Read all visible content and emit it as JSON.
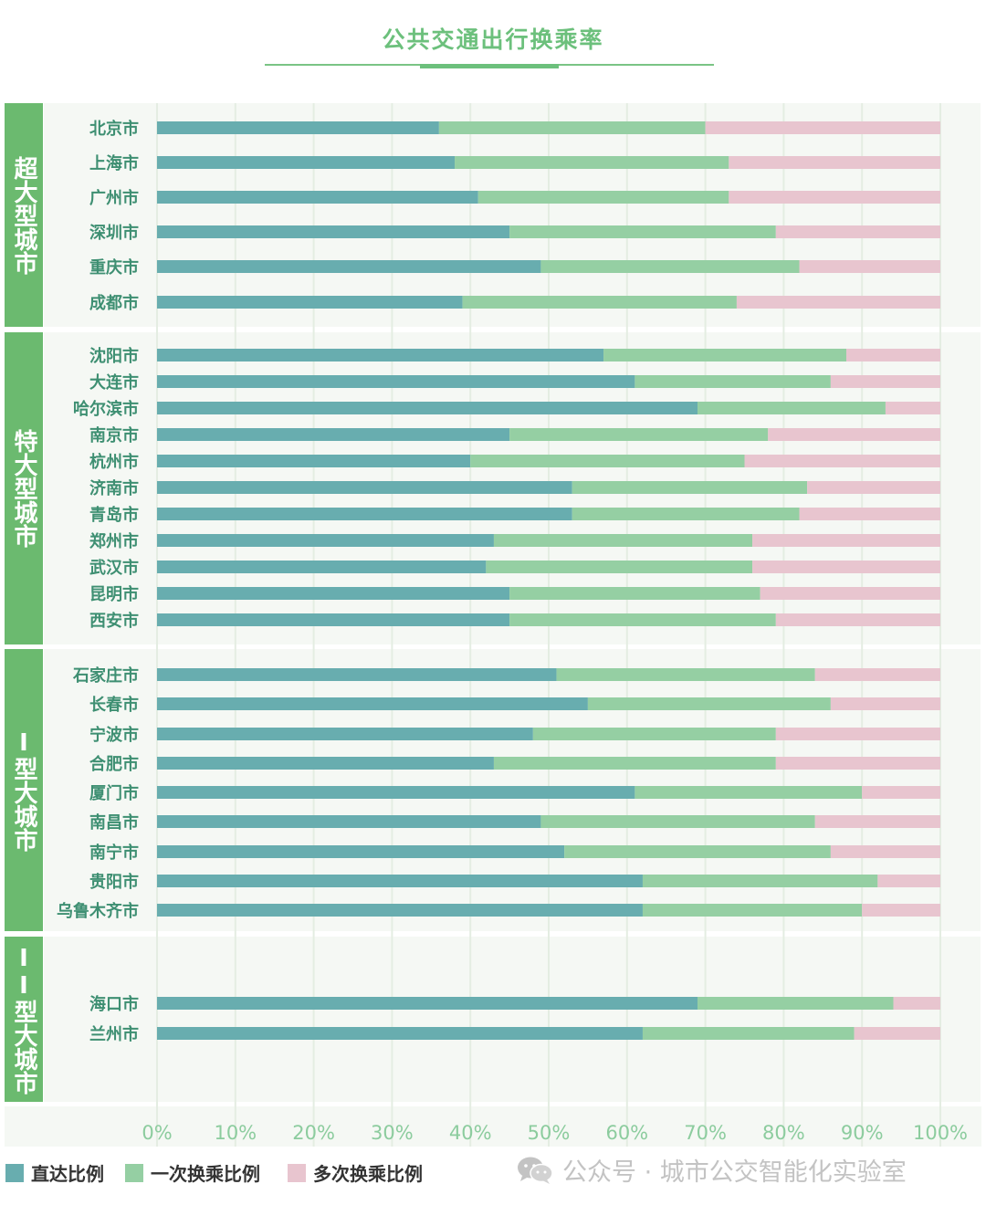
{
  "chart_data": {
    "type": "bar",
    "orientation": "horizontal",
    "stacked": true,
    "title": "公共交通出行换乘率",
    "x_ticks": [
      "0%",
      "10%",
      "20%",
      "30%",
      "40%",
      "50%",
      "60%",
      "70%",
      "80%",
      "90%",
      "100%"
    ],
    "xlim": [
      0,
      100
    ],
    "grid": true,
    "legend_position": "bottom-left",
    "colors": {
      "direct": "#68adaf",
      "one_transfer": "#95cfa3",
      "multi_transfer": "#e8c5cf",
      "group_label_bg": "#6bba6f",
      "city_label": "#3e8f72",
      "axis_tick": "#8ccc9e",
      "title": "#6cc07c"
    },
    "series": [
      {
        "name": "直达比例",
        "key": "direct"
      },
      {
        "name": "一次换乘比例",
        "key": "one_transfer"
      },
      {
        "name": "多次换乘比例",
        "key": "multi_transfer"
      }
    ],
    "groups": [
      {
        "label": "超大型城市",
        "cities": [
          {
            "name": "北京市",
            "direct": 36,
            "one_transfer": 34,
            "multi_transfer": 30
          },
          {
            "name": "上海市",
            "direct": 38,
            "one_transfer": 35,
            "multi_transfer": 27
          },
          {
            "name": "广州市",
            "direct": 41,
            "one_transfer": 32,
            "multi_transfer": 27
          },
          {
            "name": "深圳市",
            "direct": 45,
            "one_transfer": 34,
            "multi_transfer": 21
          },
          {
            "name": "重庆市",
            "direct": 49,
            "one_transfer": 33,
            "multi_transfer": 18
          },
          {
            "name": "成都市",
            "direct": 39,
            "one_transfer": 35,
            "multi_transfer": 26
          }
        ]
      },
      {
        "label": "特大型城市",
        "cities": [
          {
            "name": "沈阳市",
            "direct": 57,
            "one_transfer": 31,
            "multi_transfer": 12
          },
          {
            "name": "大连市",
            "direct": 61,
            "one_transfer": 25,
            "multi_transfer": 14
          },
          {
            "name": "哈尔滨市",
            "direct": 69,
            "one_transfer": 24,
            "multi_transfer": 7
          },
          {
            "name": "南京市",
            "direct": 45,
            "one_transfer": 33,
            "multi_transfer": 22
          },
          {
            "name": "杭州市",
            "direct": 40,
            "one_transfer": 35,
            "multi_transfer": 25
          },
          {
            "name": "济南市",
            "direct": 53,
            "one_transfer": 30,
            "multi_transfer": 17
          },
          {
            "name": "青岛市",
            "direct": 53,
            "one_transfer": 29,
            "multi_transfer": 18
          },
          {
            "name": "郑州市",
            "direct": 43,
            "one_transfer": 33,
            "multi_transfer": 24
          },
          {
            "name": "武汉市",
            "direct": 42,
            "one_transfer": 34,
            "multi_transfer": 24
          },
          {
            "name": "昆明市",
            "direct": 45,
            "one_transfer": 32,
            "multi_transfer": 23
          },
          {
            "name": "西安市",
            "direct": 45,
            "one_transfer": 34,
            "multi_transfer": 21
          }
        ]
      },
      {
        "label": "I型大城市",
        "cities": [
          {
            "name": "石家庄市",
            "direct": 51,
            "one_transfer": 33,
            "multi_transfer": 16
          },
          {
            "name": "长春市",
            "direct": 55,
            "one_transfer": 31,
            "multi_transfer": 14
          },
          {
            "name": "宁波市",
            "direct": 48,
            "one_transfer": 31,
            "multi_transfer": 21
          },
          {
            "name": "合肥市",
            "direct": 43,
            "one_transfer": 36,
            "multi_transfer": 21
          },
          {
            "name": "厦门市",
            "direct": 61,
            "one_transfer": 29,
            "multi_transfer": 10
          },
          {
            "name": "南昌市",
            "direct": 49,
            "one_transfer": 35,
            "multi_transfer": 16
          },
          {
            "name": "南宁市",
            "direct": 52,
            "one_transfer": 34,
            "multi_transfer": 14
          },
          {
            "name": "贵阳市",
            "direct": 62,
            "one_transfer": 30,
            "multi_transfer": 8
          },
          {
            "name": "乌鲁木齐市",
            "direct": 62,
            "one_transfer": 28,
            "multi_transfer": 10
          }
        ]
      },
      {
        "label": "II型大城市",
        "cities": [
          {
            "name": "海口市",
            "direct": 69,
            "one_transfer": 25,
            "multi_transfer": 6
          },
          {
            "name": "兰州市",
            "direct": 62,
            "one_transfer": 27,
            "multi_transfer": 11
          }
        ]
      }
    ]
  },
  "watermark": {
    "text": "公众号 · 城市公交智能化实验室",
    "icon": "wechat-icon"
  }
}
